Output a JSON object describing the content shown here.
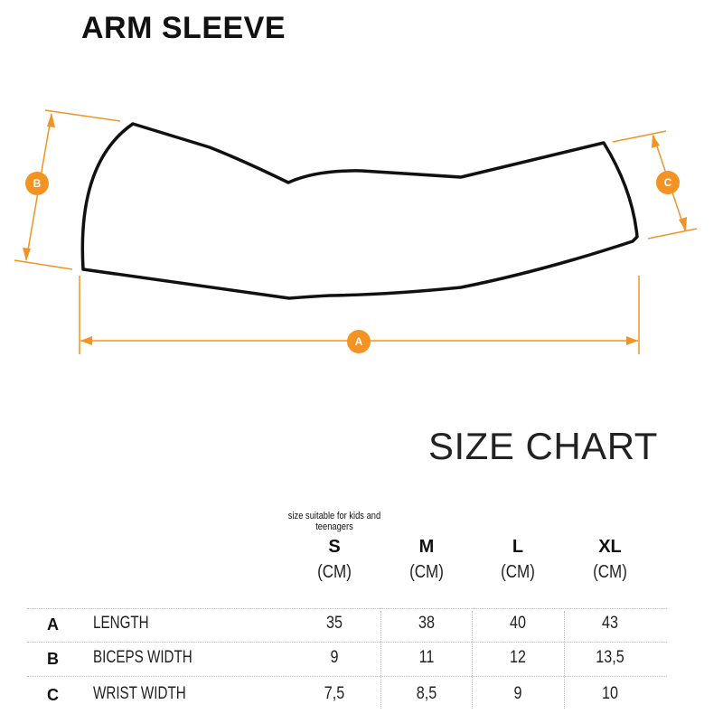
{
  "title": "ARM SLEEVE",
  "diagram": {
    "accent_color": "#F39323",
    "markers": [
      "A",
      "B",
      "C"
    ]
  },
  "size_chart": {
    "title": "SIZE CHART",
    "note": "size suitable for kids and teenagers",
    "columns": [
      {
        "size": "S",
        "unit": "(CM)"
      },
      {
        "size": "M",
        "unit": "(CM)"
      },
      {
        "size": "L",
        "unit": "(CM)"
      },
      {
        "size": "XL",
        "unit": "(CM)"
      }
    ],
    "rows": [
      {
        "letter": "A",
        "label": "LENGTH",
        "values": [
          "35",
          "38",
          "40",
          "43"
        ]
      },
      {
        "letter": "B",
        "label": "BICEPS WIDTH",
        "values": [
          "9",
          "11",
          "12",
          "13,5"
        ]
      },
      {
        "letter": "C",
        "label": "WRIST WIDTH",
        "values": [
          "7,5",
          "8,5",
          "9",
          "10"
        ]
      }
    ]
  }
}
